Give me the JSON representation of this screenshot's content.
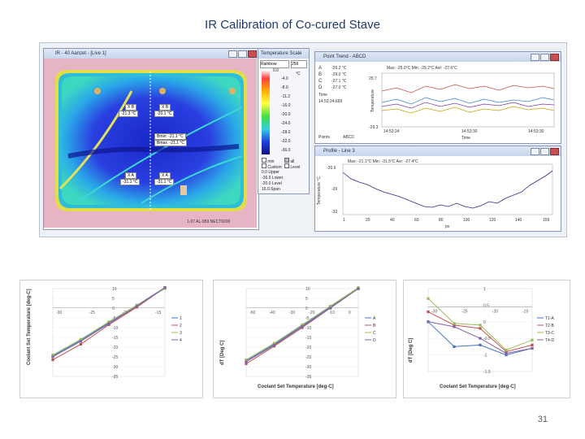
{
  "slide": {
    "title": "IR Calibration of Co-cured Stave",
    "page_number": "31"
  },
  "screenshot": {
    "thermo_window_title": "IR - 40 Aanzet - [Live 1]",
    "thermo_statusbar": "1-07 AL-959 NECT6000",
    "readouts": [
      "-21.3 °C",
      "-20.1 °C",
      "-31.1 °C",
      "-31.1 °C",
      "Bmin: -21.1 °C",
      "Bmax: -21.1 °C"
    ],
    "readout_labels": [
      "X B",
      "X B",
      "X A",
      "X A"
    ],
    "scale_window_title": "Temperature Scale",
    "scale_dropdown": "Rainbow",
    "scale_dropdown2": "256",
    "scale_values": [
      "0.0",
      "-4.0",
      "-8.0",
      "-11.2",
      "-16.0",
      "-20.0",
      "-24.0",
      "-28.0",
      "-32.0",
      "-36.0"
    ],
    "scale_unit": "°C",
    "scale_options": [
      "min",
      "all",
      "Custom",
      "Level"
    ],
    "scale_bottom": [
      "0.0 Upper",
      "-36.0 Lower",
      "-20.0 Level",
      "16.0 Span"
    ],
    "point_trend": {
      "title": "Point Trend - ABCD",
      "legend": [
        "A",
        "B",
        "C",
        "D"
      ],
      "legend_values": [
        "-26.2 °C",
        "-29.0 °C",
        "-27.1 °C",
        "-27.0 °C"
      ],
      "time_label": "Time",
      "time_value": "14:53:24.669",
      "points_label": "Points",
      "points_value": "ABCD",
      "stats": "Max: -25.0°C  Min: -29.2°C  Avr: -27.6°C",
      "y_ticks": [
        "25.7",
        "-29.3"
      ],
      "y_label": "Temperature",
      "x_ticks": [
        "14:53:24",
        "14:53:30",
        "14:53:30"
      ],
      "x_label": "Time"
    },
    "profile": {
      "title": "Profile - Line 3",
      "stats": "Max: -21.1°C  Min: -31.5°C  Avr: -27.4°C",
      "y_ticks": [
        "-20.6",
        "-26",
        "-32"
      ],
      "y_label": "Temperature °C",
      "x_ticks": [
        "1",
        "20",
        "40",
        "60",
        "80",
        "100",
        "120",
        "140",
        "159"
      ],
      "x_label": "px"
    }
  },
  "chart_data": [
    {
      "type": "line",
      "title": "",
      "xlabel": "",
      "ylabel": "Coolant Set Temperature [deg-C]",
      "x": [
        -35,
        -30,
        -25,
        -20,
        -15
      ],
      "x_ticks": [
        "-30",
        "-25",
        "-20",
        "-15"
      ],
      "y_ticks": [
        "10",
        "5",
        "0",
        "-5",
        "-10",
        "-15",
        "-20",
        "-25",
        "-30",
        "-35"
      ],
      "ylim": [
        -35,
        10
      ],
      "series": [
        {
          "name": "1",
          "color": "#4472c4",
          "values": [
            -24.5,
            -16.5,
            -7.5,
            1.5,
            10.5
          ]
        },
        {
          "name": "2",
          "color": "#c0504d",
          "values": [
            -26.5,
            -18.5,
            -8.5,
            0.5,
            10.5
          ]
        },
        {
          "name": "3",
          "color": "#9bbb59",
          "values": [
            -24,
            -16,
            -7,
            1.5,
            10
          ]
        },
        {
          "name": "4",
          "color": "#8064a2",
          "values": [
            -25,
            -17,
            -8,
            1,
            10.5
          ]
        }
      ],
      "legend": "right"
    },
    {
      "type": "line",
      "title": "",
      "xlabel": "Coolant Set Temperature [deg-C]",
      "ylabel": "dT [Deg C]",
      "x": [
        -35,
        -30,
        -25,
        -20,
        -15
      ],
      "x_ticks": [
        "-50",
        "-40",
        "-30",
        "-20",
        "-10",
        "0"
      ],
      "y_ticks": [
        "10",
        "5",
        "0",
        "-5",
        "-10",
        "-15",
        "-20",
        "-25",
        "-30",
        "-35"
      ],
      "ylim": [
        -35,
        10
      ],
      "series": [
        {
          "name": "A",
          "color": "#4472c4",
          "values": [
            -27,
            -18.5,
            -9,
            0.5,
            10
          ]
        },
        {
          "name": "B",
          "color": "#c0504d",
          "values": [
            -28.5,
            -19.5,
            -10,
            0,
            10
          ]
        },
        {
          "name": "C",
          "color": "#9bbb59",
          "values": [
            -26.5,
            -18,
            -8.5,
            1,
            10.5
          ]
        },
        {
          "name": "D",
          "color": "#8064a2",
          "values": [
            -27.5,
            -19,
            -9.5,
            0,
            10
          ]
        }
      ],
      "legend": "right"
    },
    {
      "type": "line",
      "title": "",
      "xlabel": "Coolant Set Temperature [deg-C]",
      "ylabel": "dT [Deg C]",
      "x": [
        -35,
        -30,
        -25,
        -20,
        -15
      ],
      "x_ticks": [
        "-30",
        "-25",
        "-20",
        "-15"
      ],
      "y_ticks": [
        "1",
        "0.5",
        "0",
        "-0.5",
        "-1",
        "-1.5"
      ],
      "ylim": [
        -1.5,
        1
      ],
      "series": [
        {
          "name": "T1-A",
          "color": "#4472c4",
          "values": [
            0,
            -0.75,
            -0.7,
            -1.0,
            -0.8
          ]
        },
        {
          "name": "T2-B",
          "color": "#c0504d",
          "values": [
            0.3,
            -0.1,
            -0.2,
            -0.9,
            -0.7
          ]
        },
        {
          "name": "T3-C",
          "color": "#9bbb59",
          "values": [
            0.7,
            -0.05,
            -0.1,
            -0.85,
            -0.55
          ]
        },
        {
          "name": "T4-D",
          "color": "#8064a2",
          "values": [
            0.0,
            -0.15,
            -0.5,
            -0.95,
            -0.8
          ]
        }
      ],
      "legend": "right"
    }
  ]
}
